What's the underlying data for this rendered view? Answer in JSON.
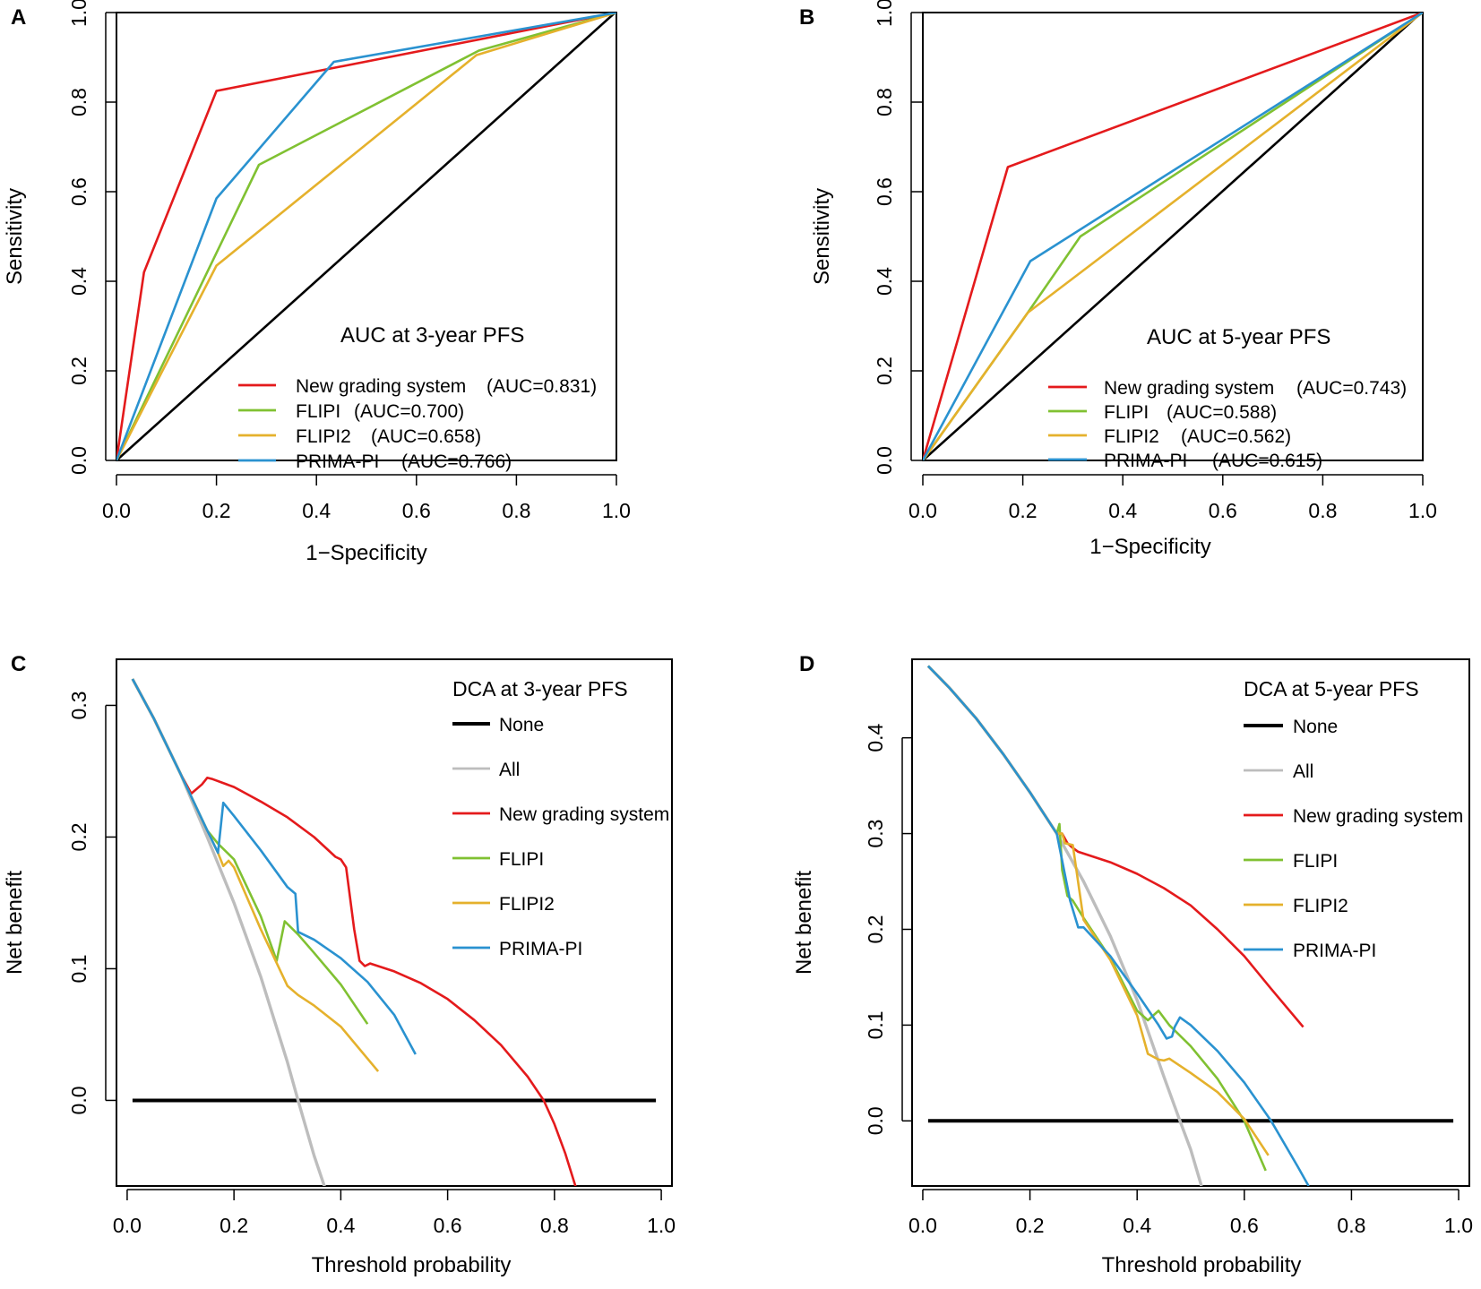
{
  "colors": {
    "red": "#e41a1c",
    "green": "#80c132",
    "orange": "#e5b12c",
    "blue": "#2a92d0",
    "gray": "#bdbdbd",
    "black": "#000000"
  },
  "chart_data": [
    {
      "panel": "A",
      "type": "line",
      "title": "AUC at 3-year PFS",
      "xlabel": "1−Specificity",
      "ylabel": "Sensitivity",
      "xlim": [
        0,
        1
      ],
      "ylim": [
        0,
        1
      ],
      "xticks": [
        "0.0",
        "0.2",
        "0.4",
        "0.6",
        "0.8",
        "1.0"
      ],
      "yticks": [
        "0.0",
        "0.2",
        "0.4",
        "0.6",
        "0.8",
        "1.0"
      ],
      "legend_position": "bottom-right",
      "series": [
        {
          "name": "New grading system",
          "auc": "(AUC=0.831)",
          "color": "red",
          "x": [
            0,
            0.055,
            0.2,
            1
          ],
          "y": [
            0,
            0.42,
            0.825,
            1
          ]
        },
        {
          "name": "FLIPI",
          "auc": "(AUC=0.700)",
          "color": "green",
          "x": [
            0,
            0.285,
            0.725,
            1
          ],
          "y": [
            0,
            0.66,
            0.915,
            1
          ]
        },
        {
          "name": "FLIPI2",
          "auc": "(AUC=0.658)",
          "color": "orange",
          "x": [
            0,
            0.2,
            0.72,
            1
          ],
          "y": [
            0,
            0.435,
            0.905,
            1
          ]
        },
        {
          "name": "PRIMA-PI",
          "auc": "(AUC=0.766)",
          "color": "blue",
          "x": [
            0,
            0.2,
            0.435,
            1
          ],
          "y": [
            0,
            0.585,
            0.89,
            1
          ]
        }
      ],
      "reference": {
        "name": "diagonal",
        "x": [
          0,
          1
        ],
        "y": [
          0,
          1
        ]
      }
    },
    {
      "panel": "B",
      "type": "line",
      "title": "AUC at 5-year PFS",
      "xlabel": "1−Specificity",
      "ylabel": "Sensitivity",
      "xlim": [
        0,
        1
      ],
      "ylim": [
        0,
        1
      ],
      "xticks": [
        "0.0",
        "0.2",
        "0.4",
        "0.6",
        "0.8",
        "1.0"
      ],
      "yticks": [
        "0.0",
        "0.2",
        "0.4",
        "0.6",
        "0.8",
        "1.0"
      ],
      "legend_position": "bottom-right",
      "series": [
        {
          "name": "New grading system",
          "auc": "(AUC=0.743)",
          "color": "red",
          "x": [
            0,
            0.17,
            1
          ],
          "y": [
            0,
            0.655,
            1
          ]
        },
        {
          "name": "FLIPI",
          "auc": "(AUC=0.588)",
          "color": "green",
          "x": [
            0,
            0.21,
            0.315,
            1
          ],
          "y": [
            0,
            0.33,
            0.5,
            1
          ]
        },
        {
          "name": "FLIPI2",
          "auc": "(AUC=0.562)",
          "color": "orange",
          "x": [
            0,
            0.21,
            1
          ],
          "y": [
            0,
            0.33,
            1
          ]
        },
        {
          "name": "PRIMA-PI",
          "auc": "(AUC=0.615)",
          "color": "blue",
          "x": [
            0,
            0.215,
            1
          ],
          "y": [
            0,
            0.445,
            1
          ]
        }
      ],
      "reference": {
        "name": "diagonal",
        "x": [
          0,
          1
        ],
        "y": [
          0,
          1
        ]
      }
    },
    {
      "panel": "C",
      "type": "line",
      "title": "DCA at 3-year PFS",
      "xlabel": "Threshold probability",
      "ylabel": "Net benefit",
      "xlim": [
        -0.02,
        1.02
      ],
      "ylim": [
        -0.065,
        0.335
      ],
      "xticks": [
        "0.0",
        "0.2",
        "0.4",
        "0.6",
        "0.8",
        "1.0"
      ],
      "yticks": [
        "0.0",
        "0.1",
        "0.2",
        "0.3"
      ],
      "legend_position": "top-right",
      "series": [
        {
          "name": "None",
          "color": "black",
          "x": [
            0.01,
            0.99
          ],
          "y": [
            0,
            0
          ]
        },
        {
          "name": "All",
          "color": "gray",
          "x": [
            0.01,
            0.05,
            0.1,
            0.15,
            0.2,
            0.25,
            0.3,
            0.32,
            0.35,
            0.37
          ],
          "y": [
            0.32,
            0.29,
            0.248,
            0.2,
            0.15,
            0.094,
            0.029,
            0.0,
            -0.042,
            -0.066
          ]
        },
        {
          "name": "New grading system",
          "color": "red",
          "x": [
            0.01,
            0.05,
            0.1,
            0.12,
            0.14,
            0.15,
            0.16,
            0.2,
            0.25,
            0.3,
            0.35,
            0.39,
            0.4,
            0.41,
            0.425,
            0.435,
            0.445,
            0.455,
            0.5,
            0.55,
            0.6,
            0.65,
            0.7,
            0.75,
            0.78,
            0.8,
            0.82,
            0.84
          ],
          "y": [
            0.32,
            0.29,
            0.248,
            0.233,
            0.24,
            0.245,
            0.244,
            0.238,
            0.227,
            0.215,
            0.2,
            0.185,
            0.183,
            0.177,
            0.13,
            0.106,
            0.102,
            0.104,
            0.098,
            0.089,
            0.077,
            0.061,
            0.042,
            0.018,
            0.0,
            -0.018,
            -0.04,
            -0.066
          ]
        },
        {
          "name": "FLIPI",
          "color": "green",
          "x": [
            0.01,
            0.05,
            0.1,
            0.15,
            0.17,
            0.2,
            0.25,
            0.28,
            0.295,
            0.32,
            0.35,
            0.4,
            0.45
          ],
          "y": [
            0.32,
            0.29,
            0.248,
            0.205,
            0.195,
            0.183,
            0.14,
            0.106,
            0.136,
            0.126,
            0.112,
            0.088,
            0.058
          ]
        },
        {
          "name": "FLIPI2",
          "color": "orange",
          "x": [
            0.01,
            0.05,
            0.1,
            0.15,
            0.17,
            0.18,
            0.19,
            0.2,
            0.25,
            0.3,
            0.32,
            0.35,
            0.4,
            0.47
          ],
          "y": [
            0.32,
            0.29,
            0.248,
            0.205,
            0.188,
            0.178,
            0.182,
            0.177,
            0.13,
            0.087,
            0.08,
            0.072,
            0.056,
            0.022
          ]
        },
        {
          "name": "PRIMA-PI",
          "color": "blue",
          "x": [
            0.01,
            0.05,
            0.1,
            0.15,
            0.17,
            0.18,
            0.2,
            0.25,
            0.3,
            0.315,
            0.32,
            0.35,
            0.4,
            0.45,
            0.5,
            0.54
          ],
          "y": [
            0.32,
            0.29,
            0.248,
            0.205,
            0.188,
            0.226,
            0.216,
            0.19,
            0.162,
            0.157,
            0.128,
            0.122,
            0.108,
            0.09,
            0.065,
            0.035
          ]
        }
      ]
    },
    {
      "panel": "D",
      "type": "line",
      "title": "DCA at 5-year PFS",
      "xlabel": "Threshold probability",
      "ylabel": "Net benefit",
      "xlim": [
        -0.02,
        1.02
      ],
      "ylim": [
        -0.068,
        0.482
      ],
      "xticks": [
        "0.0",
        "0.2",
        "0.4",
        "0.6",
        "0.8",
        "1.0"
      ],
      "yticks": [
        "0.0",
        "0.1",
        "0.2",
        "0.3",
        "0.4"
      ],
      "legend_position": "top-right",
      "series": [
        {
          "name": "None",
          "color": "black",
          "x": [
            0.01,
            0.99
          ],
          "y": [
            0,
            0
          ]
        },
        {
          "name": "All",
          "color": "gray",
          "x": [
            0.01,
            0.05,
            0.1,
            0.15,
            0.2,
            0.25,
            0.3,
            0.35,
            0.4,
            0.45,
            0.48,
            0.5,
            0.52
          ],
          "y": [
            0.475,
            0.452,
            0.42,
            0.383,
            0.343,
            0.3,
            0.25,
            0.193,
            0.126,
            0.046,
            0.0,
            -0.03,
            -0.068
          ]
        },
        {
          "name": "New grading system",
          "color": "red",
          "x": [
            0.01,
            0.05,
            0.1,
            0.15,
            0.2,
            0.25,
            0.26,
            0.27,
            0.28,
            0.29,
            0.35,
            0.4,
            0.45,
            0.5,
            0.55,
            0.6,
            0.65,
            0.71
          ],
          "y": [
            0.475,
            0.452,
            0.42,
            0.383,
            0.343,
            0.3,
            0.3,
            0.29,
            0.285,
            0.281,
            0.27,
            0.258,
            0.243,
            0.225,
            0.2,
            0.172,
            0.138,
            0.098
          ]
        },
        {
          "name": "FLIPI",
          "color": "green",
          "x": [
            0.01,
            0.05,
            0.1,
            0.15,
            0.2,
            0.25,
            0.255,
            0.26,
            0.27,
            0.28,
            0.3,
            0.35,
            0.4,
            0.42,
            0.44,
            0.46,
            0.5,
            0.55,
            0.6,
            0.64
          ],
          "y": [
            0.475,
            0.452,
            0.42,
            0.383,
            0.343,
            0.3,
            0.31,
            0.262,
            0.235,
            0.23,
            0.212,
            0.17,
            0.115,
            0.105,
            0.115,
            0.1,
            0.078,
            0.044,
            0.0,
            -0.052
          ]
        },
        {
          "name": "FLIPI2",
          "color": "orange",
          "x": [
            0.01,
            0.05,
            0.1,
            0.15,
            0.2,
            0.25,
            0.26,
            0.265,
            0.28,
            0.3,
            0.35,
            0.4,
            0.42,
            0.44,
            0.45,
            0.46,
            0.5,
            0.55,
            0.6,
            0.645
          ],
          "y": [
            0.475,
            0.452,
            0.42,
            0.383,
            0.343,
            0.3,
            0.3,
            0.29,
            0.288,
            0.21,
            0.168,
            0.11,
            0.07,
            0.064,
            0.063,
            0.065,
            0.05,
            0.03,
            0.002,
            -0.036
          ]
        },
        {
          "name": "PRIMA-PI",
          "color": "blue",
          "x": [
            0.01,
            0.05,
            0.1,
            0.15,
            0.2,
            0.25,
            0.275,
            0.29,
            0.3,
            0.35,
            0.4,
            0.44,
            0.455,
            0.465,
            0.47,
            0.48,
            0.5,
            0.55,
            0.6,
            0.65,
            0.7,
            0.72
          ],
          "y": [
            0.475,
            0.452,
            0.42,
            0.383,
            0.343,
            0.3,
            0.23,
            0.202,
            0.202,
            0.172,
            0.133,
            0.1,
            0.086,
            0.088,
            0.098,
            0.108,
            0.1,
            0.073,
            0.04,
            0.0,
            -0.048,
            -0.068
          ]
        }
      ]
    }
  ]
}
